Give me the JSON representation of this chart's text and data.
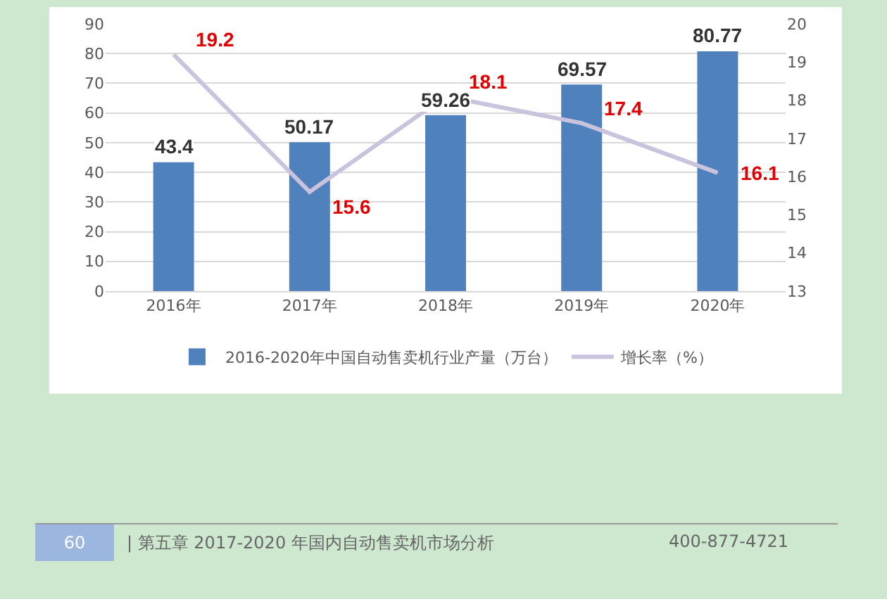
{
  "chart_data": {
    "type": "bar",
    "categories": [
      "2016年",
      "2017年",
      "2018年",
      "2019年",
      "2020年"
    ],
    "series": [
      {
        "name": "2016-2020年中国自动售卖机行业产量（万台）",
        "color": "#4f81bd",
        "values": [
          43.4,
          50.17,
          59.26,
          69.57,
          80.77
        ]
      },
      {
        "name": "增长率（%）",
        "type": "line",
        "axis": "y2",
        "color": "#c9c3dd",
        "values": [
          19.2,
          15.6,
          18.1,
          17.4,
          16.1
        ]
      }
    ],
    "data_labels": true,
    "ylim": [
      0,
      90
    ],
    "yticks": [
      0,
      10,
      20,
      30,
      40,
      50,
      60,
      70,
      80,
      90
    ],
    "y2lim": [
      13,
      20
    ],
    "y2ticks": [
      13,
      14,
      15,
      16,
      17,
      18,
      19,
      20
    ],
    "grid": "y",
    "legend": "bottom",
    "marker": "none",
    "line_style": "solid",
    "annotations": [
      "60",
      "| 第五章  2017-2020 年国内自动售卖机市场分析",
      "400-877-4721"
    ]
  }
}
